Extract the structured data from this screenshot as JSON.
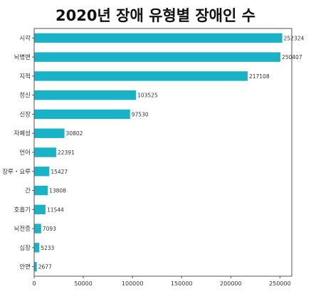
{
  "chart_data": {
    "type": "bar",
    "orientation": "horizontal",
    "title": "2020년 장애 유형별 장애인 수",
    "categories": [
      "시각",
      "뇌병변",
      "지적",
      "정신",
      "신장",
      "자폐성",
      "언어",
      "장루・요루",
      "간",
      "호흡기",
      "뇌전증",
      "심장",
      "안면"
    ],
    "values": [
      252324,
      250407,
      217108,
      103525,
      97530,
      30802,
      22391,
      15427,
      13808,
      11544,
      7093,
      5233,
      2677
    ],
    "value_labels": [
      "252324",
      "250407",
      "217108",
      "103525",
      "97530",
      "30802",
      "22391",
      "15427",
      "13808",
      "11544",
      "7093",
      "5233",
      "2677"
    ],
    "x_ticks": [
      0,
      50000,
      100000,
      150000,
      200000,
      250000
    ],
    "x_tick_labels": [
      "0",
      "50000",
      "100000",
      "150000",
      "200000",
      "250000"
    ],
    "xlim": [
      0,
      262000
    ],
    "xlabel": "",
    "ylabel": "",
    "grid": false,
    "legend": "none",
    "bar_color": "#1ab2c6"
  }
}
